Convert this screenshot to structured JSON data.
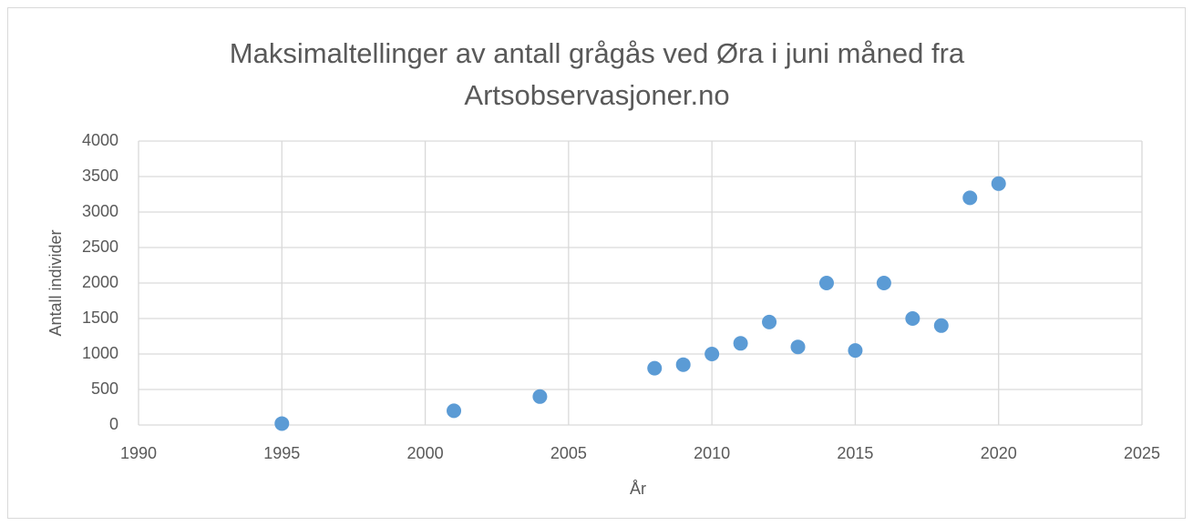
{
  "chart_data": {
    "type": "scatter",
    "title": "Maksimaltellinger av antall grågås ved Øra i juni måned fra Artsobservasjoner.no",
    "x_label": "År",
    "y_label": "Antall individer",
    "x": [
      1995,
      2001,
      2004,
      2008,
      2009,
      2010,
      2011,
      2012,
      2013,
      2014,
      2015,
      2016,
      2017,
      2018,
      2019,
      2020
    ],
    "values": [
      20,
      200,
      400,
      800,
      850,
      1000,
      1150,
      1450,
      1100,
      2000,
      1050,
      2000,
      1500,
      1400,
      3200,
      3400
    ],
    "color": "#5b9bd5",
    "xlim": [
      1990,
      2025
    ],
    "xticks": [
      1990,
      1995,
      2000,
      2005,
      2010,
      2015,
      2020,
      2025
    ],
    "ylim": [
      0,
      4000
    ],
    "yticks": [
      0,
      500,
      1000,
      1500,
      2000,
      2500,
      3000,
      3500,
      4000
    ],
    "grid": true
  }
}
